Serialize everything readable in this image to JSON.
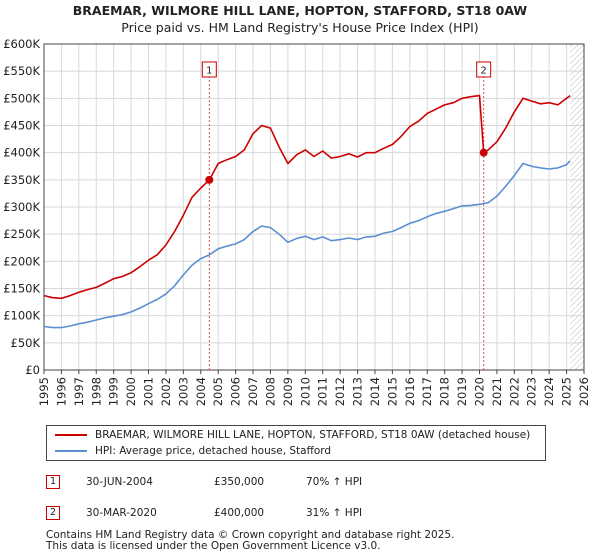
{
  "chart_data": {
    "type": "line",
    "title": "BRAEMAR, WILMORE HILL LANE, HOPTON, STAFFORD, ST18 0AW",
    "subtitle": "Price paid vs. HM Land Registry's House Price Index (HPI)",
    "xlim": [
      1995,
      2026
    ],
    "ylim": [
      0,
      600000
    ],
    "x_ticks": [
      1995,
      1996,
      1997,
      1998,
      1999,
      2000,
      2001,
      2002,
      2003,
      2004,
      2005,
      2006,
      2007,
      2008,
      2009,
      2010,
      2011,
      2012,
      2013,
      2014,
      2015,
      2016,
      2017,
      2018,
      2019,
      2020,
      2021,
      2022,
      2023,
      2024,
      2025,
      2026
    ],
    "y_ticks": [
      0,
      50000,
      100000,
      150000,
      200000,
      250000,
      300000,
      350000,
      400000,
      450000,
      500000,
      550000,
      600000
    ],
    "y_tick_labels": [
      "£0",
      "£50K",
      "£100K",
      "£150K",
      "£200K",
      "£250K",
      "£300K",
      "£350K",
      "£400K",
      "£450K",
      "£500K",
      "£550K",
      "£600K"
    ],
    "grid": true,
    "series": [
      {
        "name": "BRAEMAR, WILMORE HILL LANE, HOPTON, STAFFORD, ST18 0AW (detached house)",
        "color": "#cc0000",
        "x": [
          1995.0,
          1995.5,
          1996.0,
          1996.5,
          1997.0,
          1997.5,
          1998.0,
          1998.5,
          1999.0,
          1999.5,
          2000.0,
          2000.5,
          2001.0,
          2001.5,
          2002.0,
          2002.5,
          2003.0,
          2003.5,
          2004.0,
          2004.5,
          2005.0,
          2005.5,
          2006.0,
          2006.5,
          2007.0,
          2007.5,
          2008.0,
          2008.5,
          2009.0,
          2009.5,
          2010.0,
          2010.5,
          2011.0,
          2011.5,
          2012.0,
          2012.5,
          2013.0,
          2013.5,
          2014.0,
          2014.5,
          2015.0,
          2015.5,
          2016.0,
          2016.5,
          2017.0,
          2017.5,
          2018.0,
          2018.5,
          2019.0,
          2019.5,
          2020.0,
          2020.24,
          2020.5,
          2021.0,
          2021.5,
          2022.0,
          2022.5,
          2023.0,
          2023.5,
          2024.0,
          2024.5,
          2025.0,
          2025.2
        ],
        "values": [
          137000,
          133000,
          132000,
          137000,
          143000,
          148000,
          152000,
          160000,
          168000,
          172000,
          179000,
          190000,
          202000,
          212000,
          230000,
          255000,
          285000,
          318000,
          335000,
          350000,
          380000,
          387000,
          393000,
          405000,
          435000,
          450000,
          445000,
          410000,
          380000,
          396000,
          405000,
          393000,
          403000,
          390000,
          393000,
          398000,
          392000,
          400000,
          400000,
          408000,
          415000,
          430000,
          448000,
          458000,
          472000,
          480000,
          488000,
          492000,
          500000,
          503000,
          505000,
          400000,
          405000,
          420000,
          445000,
          475000,
          500000,
          495000,
          490000,
          492000,
          488000,
          500000,
          505000
        ]
      },
      {
        "name": "HPI: Average price, detached house, Stafford",
        "color": "#5b8fd0",
        "x": [
          1995.0,
          1995.5,
          1996.0,
          1996.5,
          1997.0,
          1997.5,
          1998.0,
          1998.5,
          1999.0,
          1999.5,
          2000.0,
          2000.5,
          2001.0,
          2001.5,
          2002.0,
          2002.5,
          2003.0,
          2003.5,
          2004.0,
          2004.5,
          2005.0,
          2005.5,
          2006.0,
          2006.5,
          2007.0,
          2007.5,
          2008.0,
          2008.5,
          2009.0,
          2009.5,
          2010.0,
          2010.5,
          2011.0,
          2011.5,
          2012.0,
          2012.5,
          2013.0,
          2013.5,
          2014.0,
          2014.5,
          2015.0,
          2015.5,
          2016.0,
          2016.5,
          2017.0,
          2017.5,
          2018.0,
          2018.5,
          2019.0,
          2019.5,
          2020.0,
          2020.5,
          2021.0,
          2021.5,
          2022.0,
          2022.5,
          2023.0,
          2023.5,
          2024.0,
          2024.5,
          2025.0,
          2025.2
        ],
        "values": [
          80000,
          78000,
          78000,
          81000,
          85000,
          88000,
          92000,
          96000,
          99000,
          102000,
          107000,
          114000,
          122000,
          130000,
          140000,
          155000,
          175000,
          193000,
          205000,
          212000,
          223000,
          228000,
          232000,
          240000,
          255000,
          265000,
          262000,
          250000,
          235000,
          242000,
          246000,
          240000,
          245000,
          238000,
          240000,
          243000,
          240000,
          245000,
          246000,
          252000,
          255000,
          262000,
          270000,
          275000,
          282000,
          288000,
          292000,
          297000,
          302000,
          303000,
          305000,
          308000,
          320000,
          338000,
          358000,
          380000,
          375000,
          372000,
          370000,
          372000,
          378000,
          385000
        ]
      }
    ],
    "sales": [
      {
        "label": "1",
        "x": 2004.49,
        "value": 350000,
        "date": "30-JUN-2004",
        "price": "£350,000",
        "hpi": "70% ↑ HPI"
      },
      {
        "label": "2",
        "x": 2020.24,
        "value": 400000,
        "date": "30-MAR-2020",
        "price": "£400,000",
        "hpi": "31% ↑ HPI"
      }
    ],
    "forecast_from": 2025.2
  },
  "legend": {
    "red_label": "BRAEMAR, WILMORE HILL LANE, HOPTON, STAFFORD, ST18 0AW (detached house)",
    "blue_label": "HPI: Average price, detached house, Stafford"
  },
  "footer": {
    "line1": "Contains HM Land Registry data © Crown copyright and database right 2025.",
    "line2": "This data is licensed under the Open Government Licence v3.0."
  }
}
